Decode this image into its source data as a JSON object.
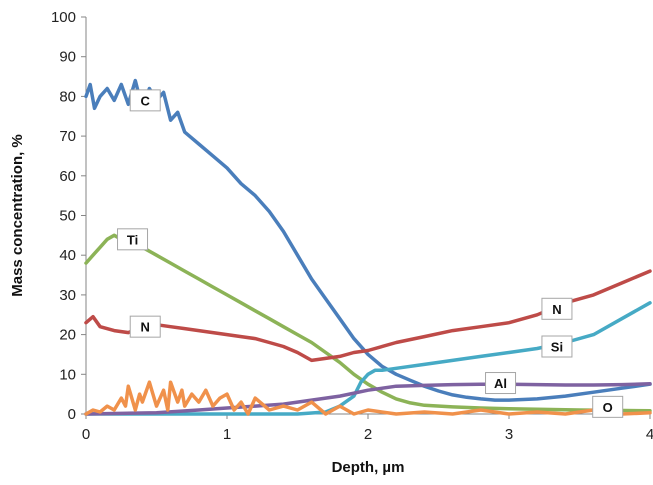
{
  "chart_data": {
    "type": "line",
    "title": "",
    "xlabel": "Depth, µm",
    "ylabel": "Mass concentration, %",
    "xlim": [
      0,
      4
    ],
    "ylim": [
      0,
      100
    ],
    "x_ticks": [
      "0",
      "1",
      "2",
      "3",
      "4"
    ],
    "y_ticks": [
      "0",
      "10",
      "20",
      "30",
      "40",
      "50",
      "60",
      "70",
      "80",
      "90",
      "100"
    ],
    "grid": false,
    "legend": "none",
    "series": [
      {
        "name": "C",
        "color": "#4a7ebb",
        "x": [
          0,
          0.03,
          0.06,
          0.1,
          0.15,
          0.2,
          0.25,
          0.3,
          0.35,
          0.4,
          0.45,
          0.5,
          0.55,
          0.6,
          0.65,
          0.7,
          0.8,
          0.9,
          1.0,
          1.1,
          1.2,
          1.3,
          1.4,
          1.5,
          1.6,
          1.7,
          1.8,
          1.9,
          2.0,
          2.1,
          2.2,
          2.3,
          2.4,
          2.5,
          2.6,
          2.7,
          2.8,
          2.9,
          3.0,
          3.2,
          3.4,
          3.6,
          3.8,
          4.0
        ],
        "y": [
          80,
          83,
          77,
          80,
          82,
          79,
          83,
          78,
          84,
          77,
          82,
          79,
          81,
          74,
          76,
          71,
          68,
          65,
          62,
          58,
          55,
          51,
          46,
          40,
          34,
          29,
          24,
          19,
          15,
          12,
          10,
          8.5,
          7,
          5.8,
          4.8,
          4.2,
          3.8,
          3.5,
          3.5,
          3.8,
          4.5,
          5.5,
          6.5,
          7.5
        ]
      },
      {
        "name": "Ti",
        "color": "#8cb357",
        "x": [
          0,
          0.05,
          0.1,
          0.15,
          0.2,
          0.3,
          0.4,
          0.5,
          0.6,
          0.7,
          0.8,
          0.9,
          1.0,
          1.1,
          1.2,
          1.3,
          1.4,
          1.5,
          1.6,
          1.7,
          1.8,
          1.9,
          2.0,
          2.1,
          2.2,
          2.3,
          2.4,
          2.6,
          2.8,
          3.0,
          3.5,
          4.0
        ],
        "y": [
          38,
          40,
          42,
          44,
          45,
          43,
          42,
          40,
          38,
          36,
          34,
          32,
          30,
          28,
          26,
          24,
          22,
          20,
          18,
          15.5,
          13,
          10,
          7.5,
          5.5,
          3.8,
          2.8,
          2.2,
          1.8,
          1.5,
          1.3,
          1.0,
          0.8
        ]
      },
      {
        "name": "N",
        "color": "#be4b48",
        "x": [
          0,
          0.05,
          0.1,
          0.2,
          0.3,
          0.4,
          0.5,
          0.6,
          0.7,
          0.8,
          0.9,
          1.0,
          1.1,
          1.2,
          1.3,
          1.4,
          1.5,
          1.6,
          1.7,
          1.8,
          1.9,
          2.0,
          2.2,
          2.4,
          2.6,
          2.8,
          3.0,
          3.2,
          3.4,
          3.6,
          3.8,
          4.0
        ],
        "y": [
          23,
          24.5,
          22,
          21,
          20.5,
          22,
          22.5,
          22,
          21.5,
          21,
          20.5,
          20,
          19.5,
          19,
          18,
          17,
          15.5,
          13.5,
          14,
          14.5,
          15.5,
          16,
          18,
          19.5,
          21,
          22,
          23,
          25,
          28,
          30,
          33,
          36
        ]
      },
      {
        "name": "Si",
        "color": "#46aac5",
        "x": [
          0,
          0.5,
          1.0,
          1.5,
          1.7,
          1.8,
          1.9,
          1.95,
          2.0,
          2.05,
          2.1,
          2.2,
          2.4,
          2.6,
          2.8,
          3.0,
          3.2,
          3.4,
          3.6,
          3.8,
          4.0
        ],
        "y": [
          0,
          0,
          0,
          0,
          0.5,
          2,
          4.5,
          8,
          10,
          11,
          11,
          11.5,
          12.5,
          13.5,
          14.5,
          15.5,
          16.5,
          18,
          20,
          24,
          28
        ]
      },
      {
        "name": "Al",
        "color": "#7e62a1",
        "x": [
          0,
          0.5,
          0.8,
          1.0,
          1.2,
          1.4,
          1.6,
          1.8,
          2.0,
          2.2,
          2.4,
          2.6,
          2.8,
          3.0,
          3.2,
          3.4,
          3.6,
          3.8,
          4.0
        ],
        "y": [
          0,
          0.3,
          1,
          1.5,
          2,
          2.5,
          3.5,
          4.5,
          6,
          7,
          7.2,
          7.4,
          7.5,
          7.5,
          7.4,
          7.3,
          7.3,
          7.4,
          7.6
        ]
      },
      {
        "name": "O",
        "color": "#f0914b",
        "x": [
          0,
          0.05,
          0.1,
          0.15,
          0.2,
          0.25,
          0.28,
          0.3,
          0.35,
          0.38,
          0.4,
          0.45,
          0.5,
          0.55,
          0.58,
          0.6,
          0.65,
          0.68,
          0.7,
          0.75,
          0.8,
          0.85,
          0.9,
          0.95,
          1.0,
          1.05,
          1.1,
          1.15,
          1.2,
          1.3,
          1.4,
          1.5,
          1.6,
          1.7,
          1.8,
          1.9,
          2.0,
          2.2,
          2.4,
          2.6,
          2.8,
          3.0,
          3.2,
          3.4,
          3.6,
          3.8,
          4.0
        ],
        "y": [
          0,
          1,
          0.5,
          2,
          1,
          4,
          2,
          7,
          1,
          5,
          3,
          8,
          2,
          6,
          1,
          8,
          3,
          6,
          2,
          5,
          3,
          6,
          2,
          4,
          5,
          1,
          3,
          0,
          4,
          1,
          2,
          1,
          3,
          0,
          2,
          0,
          1,
          0,
          0.5,
          0,
          1,
          0,
          0.5,
          0,
          1,
          0,
          0.3
        ]
      }
    ],
    "series_labels": [
      {
        "text": "C",
        "series": "C",
        "x": 0.42,
        "y": 79
      },
      {
        "text": "Ti",
        "series": "Ti",
        "x": 0.33,
        "y": 44
      },
      {
        "text": "N",
        "series": "N",
        "x": 0.42,
        "y": 22
      },
      {
        "text": "N",
        "series": "N",
        "x": 3.34,
        "y": 26.5
      },
      {
        "text": "Si",
        "series": "Si",
        "x": 3.34,
        "y": 17
      },
      {
        "text": "Al",
        "series": "Al",
        "x": 2.94,
        "y": 7.8
      },
      {
        "text": "O",
        "series": "O",
        "x": 3.7,
        "y": 1.8
      }
    ]
  }
}
